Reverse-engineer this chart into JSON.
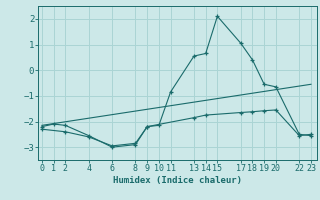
{
  "xlabel": "Humidex (Indice chaleur)",
  "bg_color": "#cce8e8",
  "grid_color": "#aad4d4",
  "line_color": "#1a6b6b",
  "line1_x": [
    0,
    1,
    2,
    4,
    6,
    8,
    9,
    10,
    11,
    13,
    14,
    15,
    17,
    18,
    19,
    20,
    22,
    23
  ],
  "line1_y": [
    -2.2,
    -2.1,
    -2.15,
    -2.55,
    -3.0,
    -2.9,
    -2.2,
    -2.15,
    -0.85,
    0.55,
    0.65,
    2.1,
    1.05,
    0.4,
    -0.55,
    -0.65,
    -2.5,
    -2.55
  ],
  "line2_x": [
    0,
    23
  ],
  "line2_y": [
    -2.15,
    -0.55
  ],
  "line3_x": [
    0,
    2,
    4,
    6,
    8,
    9,
    13,
    14,
    17,
    18,
    19,
    20,
    22,
    23
  ],
  "line3_y": [
    -2.3,
    -2.4,
    -2.6,
    -2.95,
    -2.85,
    -2.2,
    -1.85,
    -1.75,
    -1.65,
    -1.62,
    -1.58,
    -1.55,
    -2.55,
    -2.5
  ],
  "xlim": [
    -0.3,
    23.5
  ],
  "ylim": [
    -3.5,
    2.5
  ],
  "xticks": [
    0,
    1,
    2,
    4,
    6,
    8,
    9,
    10,
    11,
    13,
    14,
    15,
    17,
    18,
    19,
    20,
    22,
    23
  ],
  "yticks": [
    -3,
    -2,
    -1,
    0,
    1,
    2
  ]
}
